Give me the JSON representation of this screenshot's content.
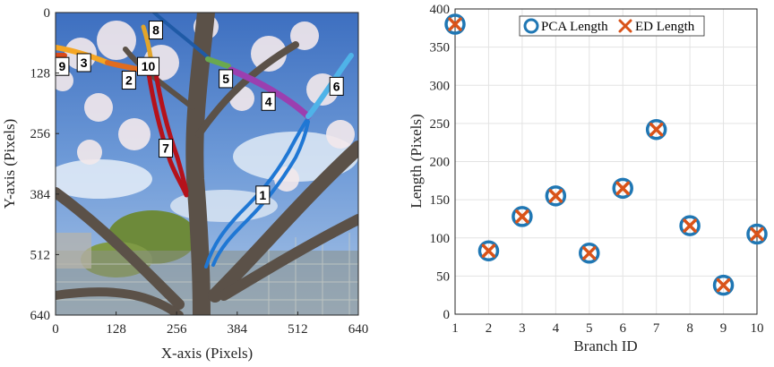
{
  "chart_data": [
    {
      "type": "image-overlay",
      "xlabel": "X-axis (Pixels)",
      "ylabel": "Y-axis (Pixels)",
      "xlim": [
        0,
        640
      ],
      "ylim": [
        640,
        0
      ],
      "xticks": [
        "0",
        "128",
        "256",
        "384",
        "512",
        "640"
      ],
      "yticks": [
        "0",
        "128",
        "256",
        "384",
        "512",
        "640"
      ],
      "branch_labels": [
        {
          "id": "1",
          "x": 438,
          "y": 386,
          "color": "#1f77d4"
        },
        {
          "id": "2",
          "x": 155,
          "y": 143,
          "color": "#e06c1f"
        },
        {
          "id": "3",
          "x": 60,
          "y": 106,
          "color": "#f5a623"
        },
        {
          "id": "4",
          "x": 450,
          "y": 188,
          "color": "#9b3fb0"
        },
        {
          "id": "5",
          "x": 360,
          "y": 140,
          "color": "#6aa84f"
        },
        {
          "id": "6",
          "x": 594,
          "y": 156,
          "color": "#4fb3e8"
        },
        {
          "id": "7",
          "x": 233,
          "y": 287,
          "color": "#b5121b"
        },
        {
          "id": "8",
          "x": 212,
          "y": 37,
          "color": "#1f5aa6"
        },
        {
          "id": "9",
          "x": 14,
          "y": 114,
          "color": "#d94a1a"
        },
        {
          "id": "10",
          "x": 196,
          "y": 114,
          "color": "#e3a52a"
        }
      ]
    },
    {
      "type": "scatter",
      "xlabel": "Branch ID",
      "ylabel": "Length (Pixels)",
      "xlim": [
        1,
        10
      ],
      "ylim": [
        0,
        400
      ],
      "grid": true,
      "legend_position": "top-center",
      "x": [
        1,
        2,
        3,
        4,
        5,
        6,
        7,
        8,
        9,
        10
      ],
      "series": [
        {
          "name": "PCA Length",
          "marker": "circle",
          "color": "#1f77b4",
          "values": [
            380,
            83,
            128,
            155,
            80,
            165,
            242,
            116,
            38,
            105
          ]
        },
        {
          "name": "ED Length",
          "marker": "x",
          "color": "#d95319",
          "values": [
            380,
            83,
            128,
            155,
            80,
            165,
            242,
            116,
            38,
            105
          ]
        }
      ],
      "xticks": [
        "1",
        "2",
        "3",
        "4",
        "5",
        "6",
        "7",
        "8",
        "9",
        "10"
      ],
      "yticks": [
        "0",
        "50",
        "100",
        "150",
        "200",
        "250",
        "300",
        "350",
        "400"
      ]
    }
  ]
}
